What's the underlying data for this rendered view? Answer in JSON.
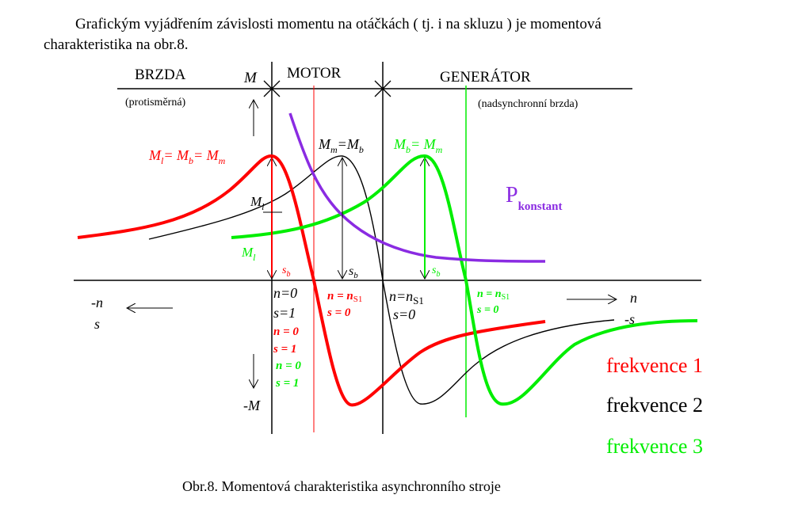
{
  "intro": {
    "line1": "Grafickým vyjádřením závislosti momentu na otáčkách ( tj. i na skluzu )  je momentová",
    "line2": "charakteristika na obr.8."
  },
  "regions": {
    "brake": "BRZDA",
    "brake_note": "(protisměrná)",
    "motor": "MOTOR",
    "generator": "GENERÁTOR",
    "generator_note": "(nadsynchronní brzda)"
  },
  "axes": {
    "M": "M",
    "minus_M": "-M",
    "minus_n": "-n",
    "s_left": "s",
    "n_right": "n",
    "minus_s": "-s"
  },
  "labels": {
    "red_peak": {
      "M1": "M",
      "s1": "l",
      "eq1": "= M",
      "s2": "b",
      "eq2": "= M",
      "s3": "m"
    },
    "black_peak": {
      "M1": "M",
      "s1": "m",
      "eq1": "=M",
      "s2": "b"
    },
    "green_peak": {
      "M1": "M",
      "s1": "b",
      "eq1": "= M",
      "s2": "m"
    },
    "power": {
      "P": "P",
      "sub": "konstant"
    },
    "Ml_black": {
      "M": "M",
      "sub": "l"
    },
    "Ml_green": {
      "M": "M",
      "sub": "l"
    },
    "sb_red": {
      "s": "s",
      "sub": "b"
    },
    "sb_black": {
      "s": "s",
      "sub": "b"
    },
    "sb_green": {
      "s": "s",
      "sub": "b"
    },
    "black_n0": "n=0",
    "black_s1": "s=1",
    "red_n0": "n = 0",
    "red_s1": "s = 1",
    "green_n0": "n = 0",
    "green_s1": "s = 1",
    "red_ns": {
      "n": "n = n",
      "sub": "S1"
    },
    "red_s0": "s = 0",
    "black_ns": {
      "n": "n=n",
      "sub": "S1"
    },
    "black_s0": "s=0",
    "green_ns": {
      "n": "n = n",
      "sub": "S1"
    },
    "green_s0": "s = 0"
  },
  "legend": [
    {
      "label": "frekvence 1",
      "color": "#ff0000"
    },
    {
      "label": "frekvence 2",
      "color": "#000000"
    },
    {
      "label": "frekvence 3",
      "color": "#00ee00"
    }
  ],
  "colors": {
    "red": "#ff0000",
    "black": "#000000",
    "green": "#00ee00",
    "purple": "#8a2be2"
  },
  "caption": "Obr.8. Momentová charakteristika asynchronního stroje"
}
